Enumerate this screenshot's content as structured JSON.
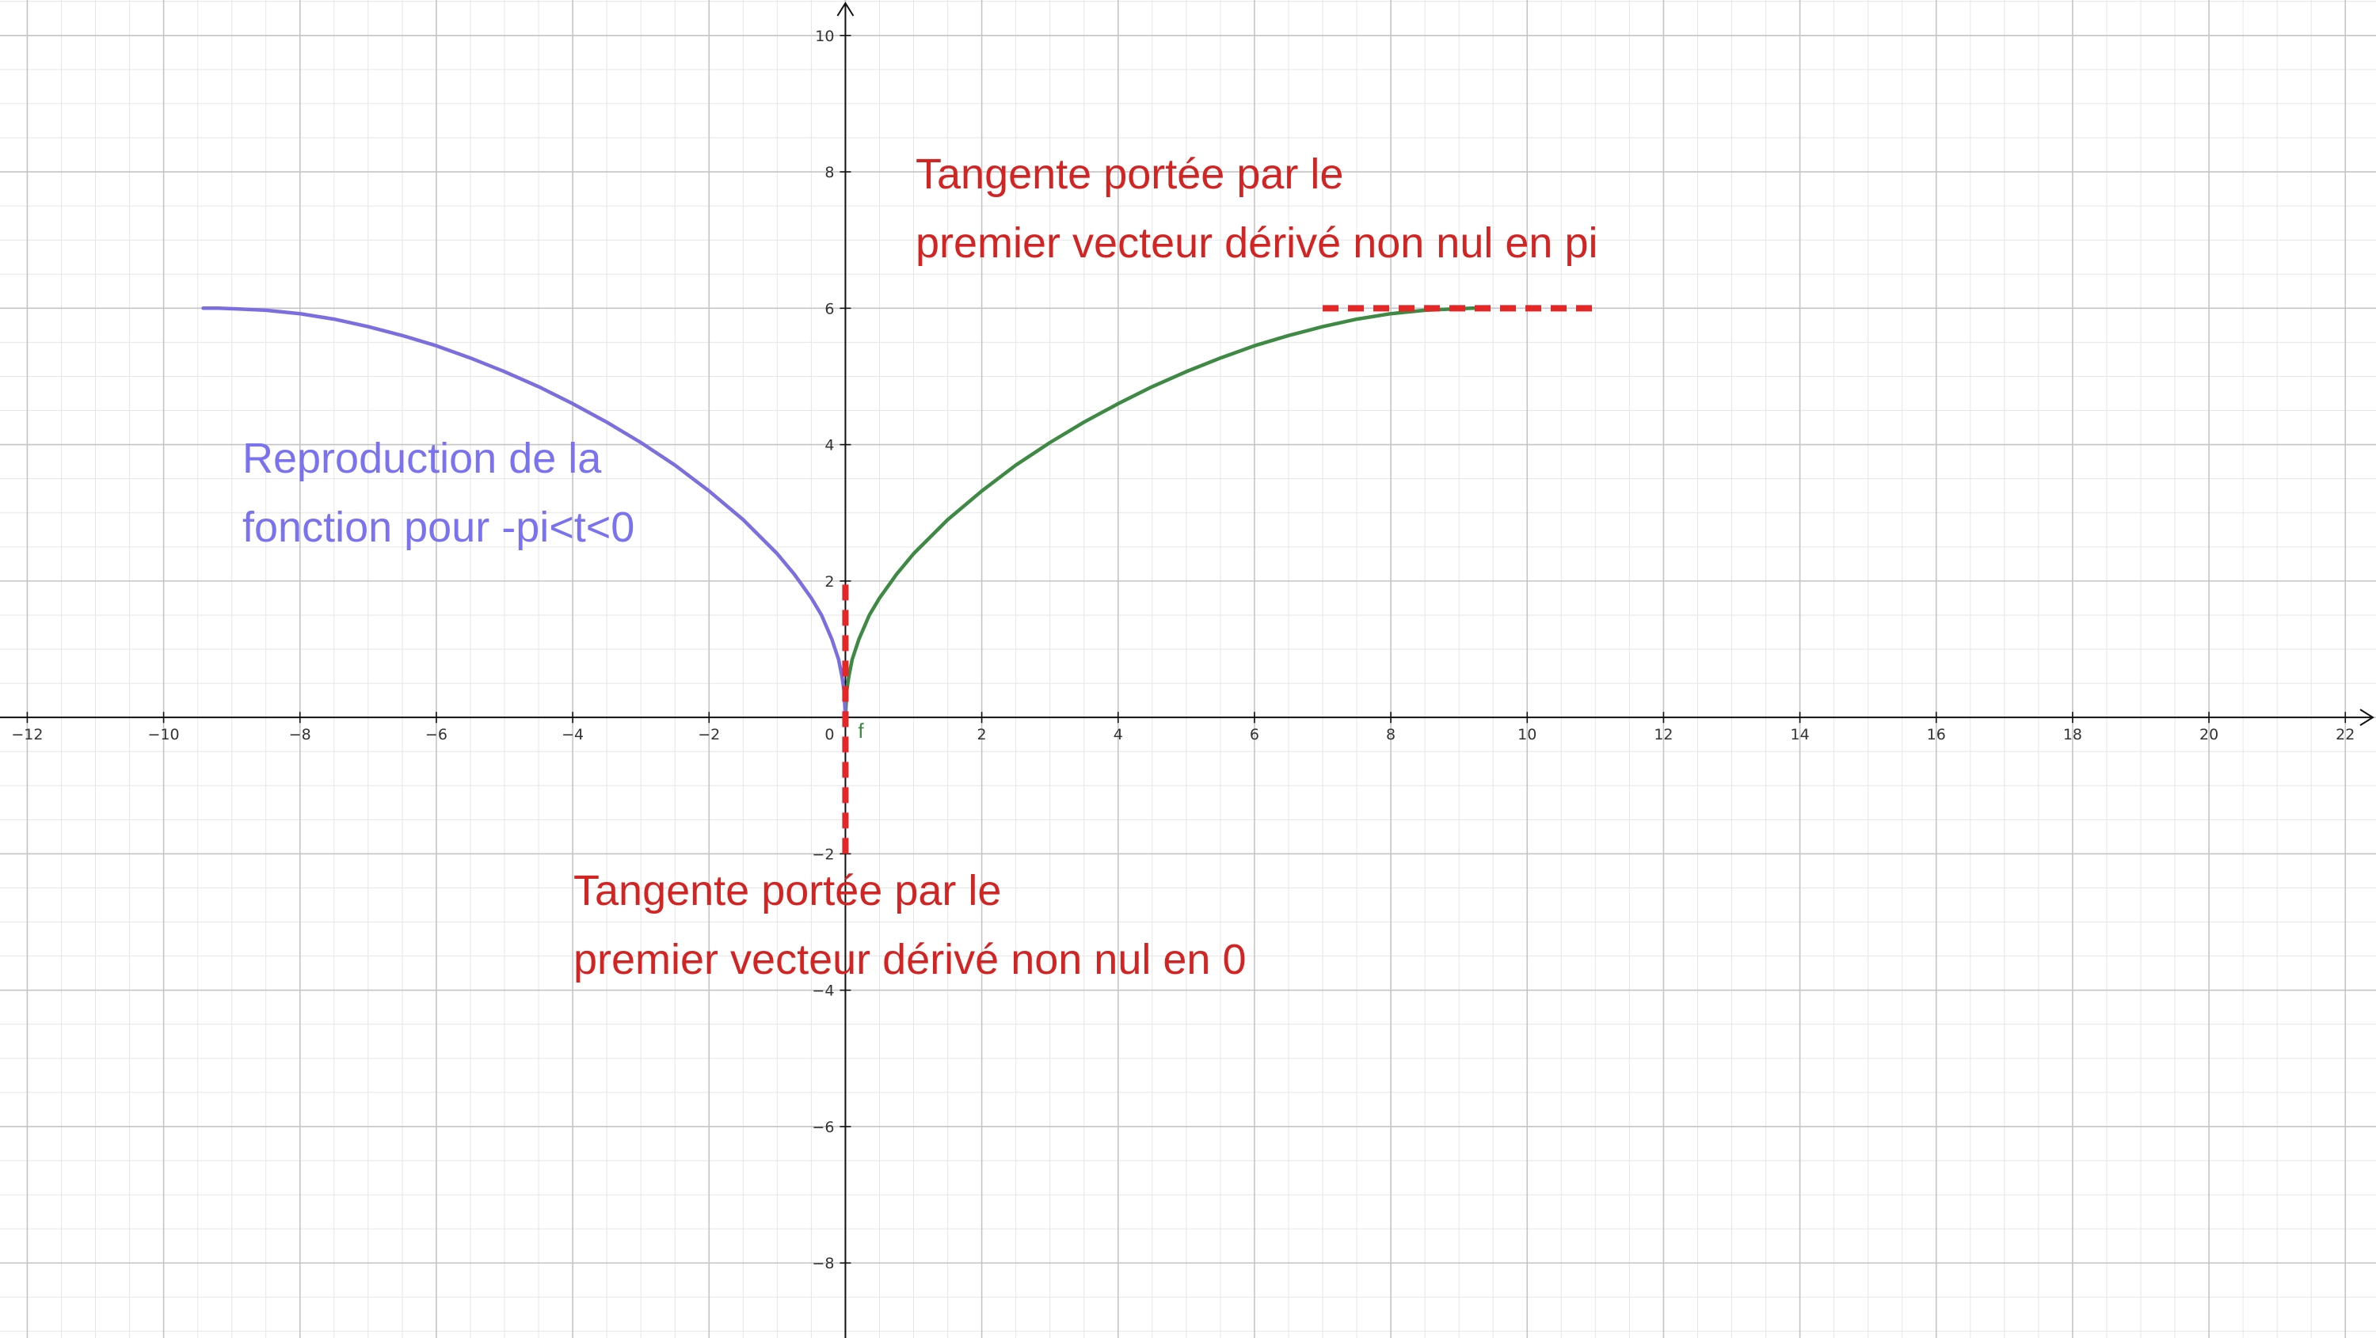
{
  "colors": {
    "background": "#ffffff",
    "minor_grid": "#e6e6e6",
    "major_grid": "#c4c4c4",
    "axis": "#111111",
    "blue_curve": "#7b6fe0",
    "green_curve": "#3e8a44",
    "tangent": "#e52626",
    "annotation_red": "#d32424",
    "annotation_blue": "#7a72ee"
  },
  "chart_data": {
    "type": "line",
    "title": "",
    "xlabel": "",
    "ylabel": "",
    "xlim": [
      -12.4,
      22.45
    ],
    "ylim": [
      -9.1,
      10.52
    ],
    "grid": true,
    "minor_grid": true,
    "x_ticks": [
      -12,
      -10,
      -8,
      -6,
      -4,
      -2,
      0,
      2,
      4,
      6,
      8,
      10,
      12,
      14,
      16,
      18,
      20,
      22
    ],
    "y_ticks": [
      -8,
      -6,
      -4,
      -2,
      2,
      4,
      6,
      8,
      10
    ],
    "x_tick_labels": [
      "−12",
      "−10",
      "−8",
      "−6",
      "−4",
      "−2",
      "0",
      "2",
      "4",
      "6",
      "8",
      "10",
      "12",
      "14",
      "16",
      "18",
      "20",
      "22"
    ],
    "y_tick_labels": [
      "−8",
      "−6",
      "−4",
      "−2",
      "2",
      "4",
      "6",
      "8",
      "10"
    ],
    "series": [
      {
        "key": "f",
        "name": "f",
        "color": "green",
        "x": [
          0,
          0.02,
          0.05,
          0.1,
          0.2,
          0.35,
          0.5,
          0.75,
          1.0,
          1.5,
          2.0,
          2.5,
          3.0,
          3.5,
          4.0,
          4.5,
          5.0,
          5.5,
          6.0,
          6.5,
          7.0,
          7.5,
          8.0,
          8.5,
          8.9,
          9.2,
          9.42
        ],
        "y": [
          0,
          0.4,
          0.6,
          0.85,
          1.15,
          1.5,
          1.75,
          2.1,
          2.4,
          2.9,
          3.32,
          3.7,
          4.03,
          4.33,
          4.6,
          4.85,
          5.07,
          5.27,
          5.45,
          5.6,
          5.73,
          5.84,
          5.92,
          5.97,
          5.99,
          6.0,
          6.0
        ]
      },
      {
        "key": "reproduction",
        "name": "",
        "color": "blue",
        "x": [
          0,
          -0.02,
          -0.05,
          -0.1,
          -0.2,
          -0.35,
          -0.5,
          -0.75,
          -1.0,
          -1.5,
          -2.0,
          -2.5,
          -3.0,
          -3.5,
          -4.0,
          -4.5,
          -5.0,
          -5.5,
          -6.0,
          -6.5,
          -7.0,
          -7.5,
          -8.0,
          -8.5,
          -8.9,
          -9.2,
          -9.42
        ],
        "y": [
          0,
          0.4,
          0.6,
          0.85,
          1.15,
          1.5,
          1.75,
          2.1,
          2.4,
          2.9,
          3.32,
          3.7,
          4.03,
          4.33,
          4.6,
          4.85,
          5.07,
          5.27,
          5.45,
          5.6,
          5.73,
          5.84,
          5.92,
          5.97,
          5.99,
          6.0,
          6.0
        ]
      }
    ],
    "tangents": [
      {
        "key": "tangent_at_0",
        "style": "dashed",
        "x": [
          0,
          0
        ],
        "y": [
          -2,
          2
        ]
      },
      {
        "key": "tangent_at_pi",
        "style": "dashed",
        "x": [
          7,
          11
        ],
        "y": [
          6,
          6
        ]
      }
    ],
    "annotations": {
      "tangent_pi": [
        "Tangente portée par le",
        "premier vecteur dérivé non nul en pi"
      ],
      "tangent_0": [
        "Tangente portée par le",
        "premier vecteur dérivé non nul en 0"
      ],
      "reproduction": [
        "Reproduction de la",
        "fonction pour -pi<t<0"
      ]
    }
  }
}
